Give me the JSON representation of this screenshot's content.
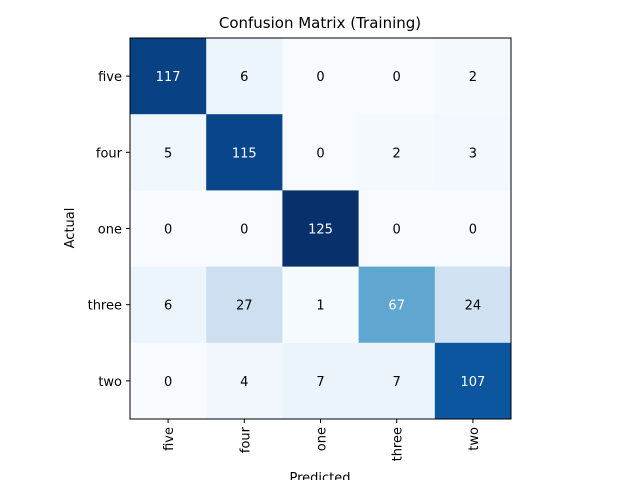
{
  "chart_data": {
    "type": "heatmap",
    "title": "Confusion Matrix (Training)",
    "xlabel": "Predicted",
    "ylabel": "Actual",
    "x_categories": [
      "five",
      "four",
      "one",
      "three",
      "two"
    ],
    "y_categories": [
      "five",
      "four",
      "one",
      "three",
      "two"
    ],
    "values": [
      [
        117,
        6,
        0,
        0,
        2
      ],
      [
        5,
        115,
        0,
        2,
        3
      ],
      [
        0,
        0,
        125,
        0,
        0
      ],
      [
        6,
        27,
        1,
        67,
        24
      ],
      [
        0,
        4,
        7,
        7,
        107
      ]
    ],
    "colormap": "Blues",
    "value_range": [
      0,
      125
    ],
    "grid": false,
    "legend": "none"
  }
}
